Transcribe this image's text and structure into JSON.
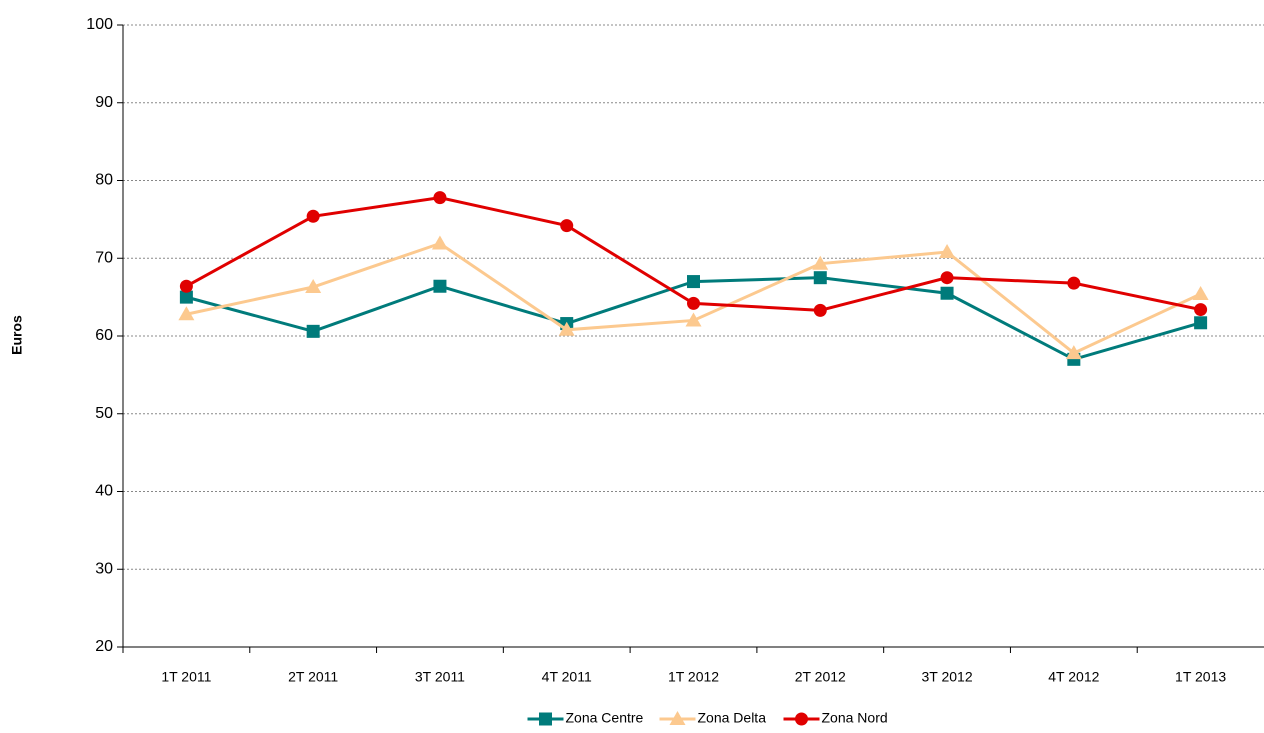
{
  "chart_data": {
    "type": "line",
    "y_label": "Euros",
    "categories": [
      "1T 2011",
      "2T 2011",
      "3T 2011",
      "4T 2011",
      "1T 2012",
      "2T 2012",
      "3T 2012",
      "4T 2012",
      "1T 2013"
    ],
    "series": [
      {
        "name": "Zona Centre",
        "color": "#007b7b",
        "marker": "square",
        "values": [
          65,
          60.6,
          66.4,
          61.6,
          67,
          67.5,
          65.5,
          57,
          61.7
        ]
      },
      {
        "name": "Zona Delta",
        "color": "#fcc98f",
        "marker": "triangle",
        "values": [
          62.8,
          66.3,
          71.9,
          60.8,
          62,
          69.3,
          70.8,
          57.8,
          65.4
        ]
      },
      {
        "name": "Zona Nord",
        "color": "#e00000",
        "marker": "circle",
        "values": [
          66.4,
          75.4,
          77.8,
          74.2,
          64.2,
          63.3,
          67.5,
          66.8,
          63.4
        ]
      }
    ],
    "ylim": [
      20,
      100
    ],
    "yticks": [
      20,
      30,
      40,
      50,
      60,
      70,
      80,
      90,
      100
    ],
    "grid": true,
    "legend": "bottom"
  }
}
